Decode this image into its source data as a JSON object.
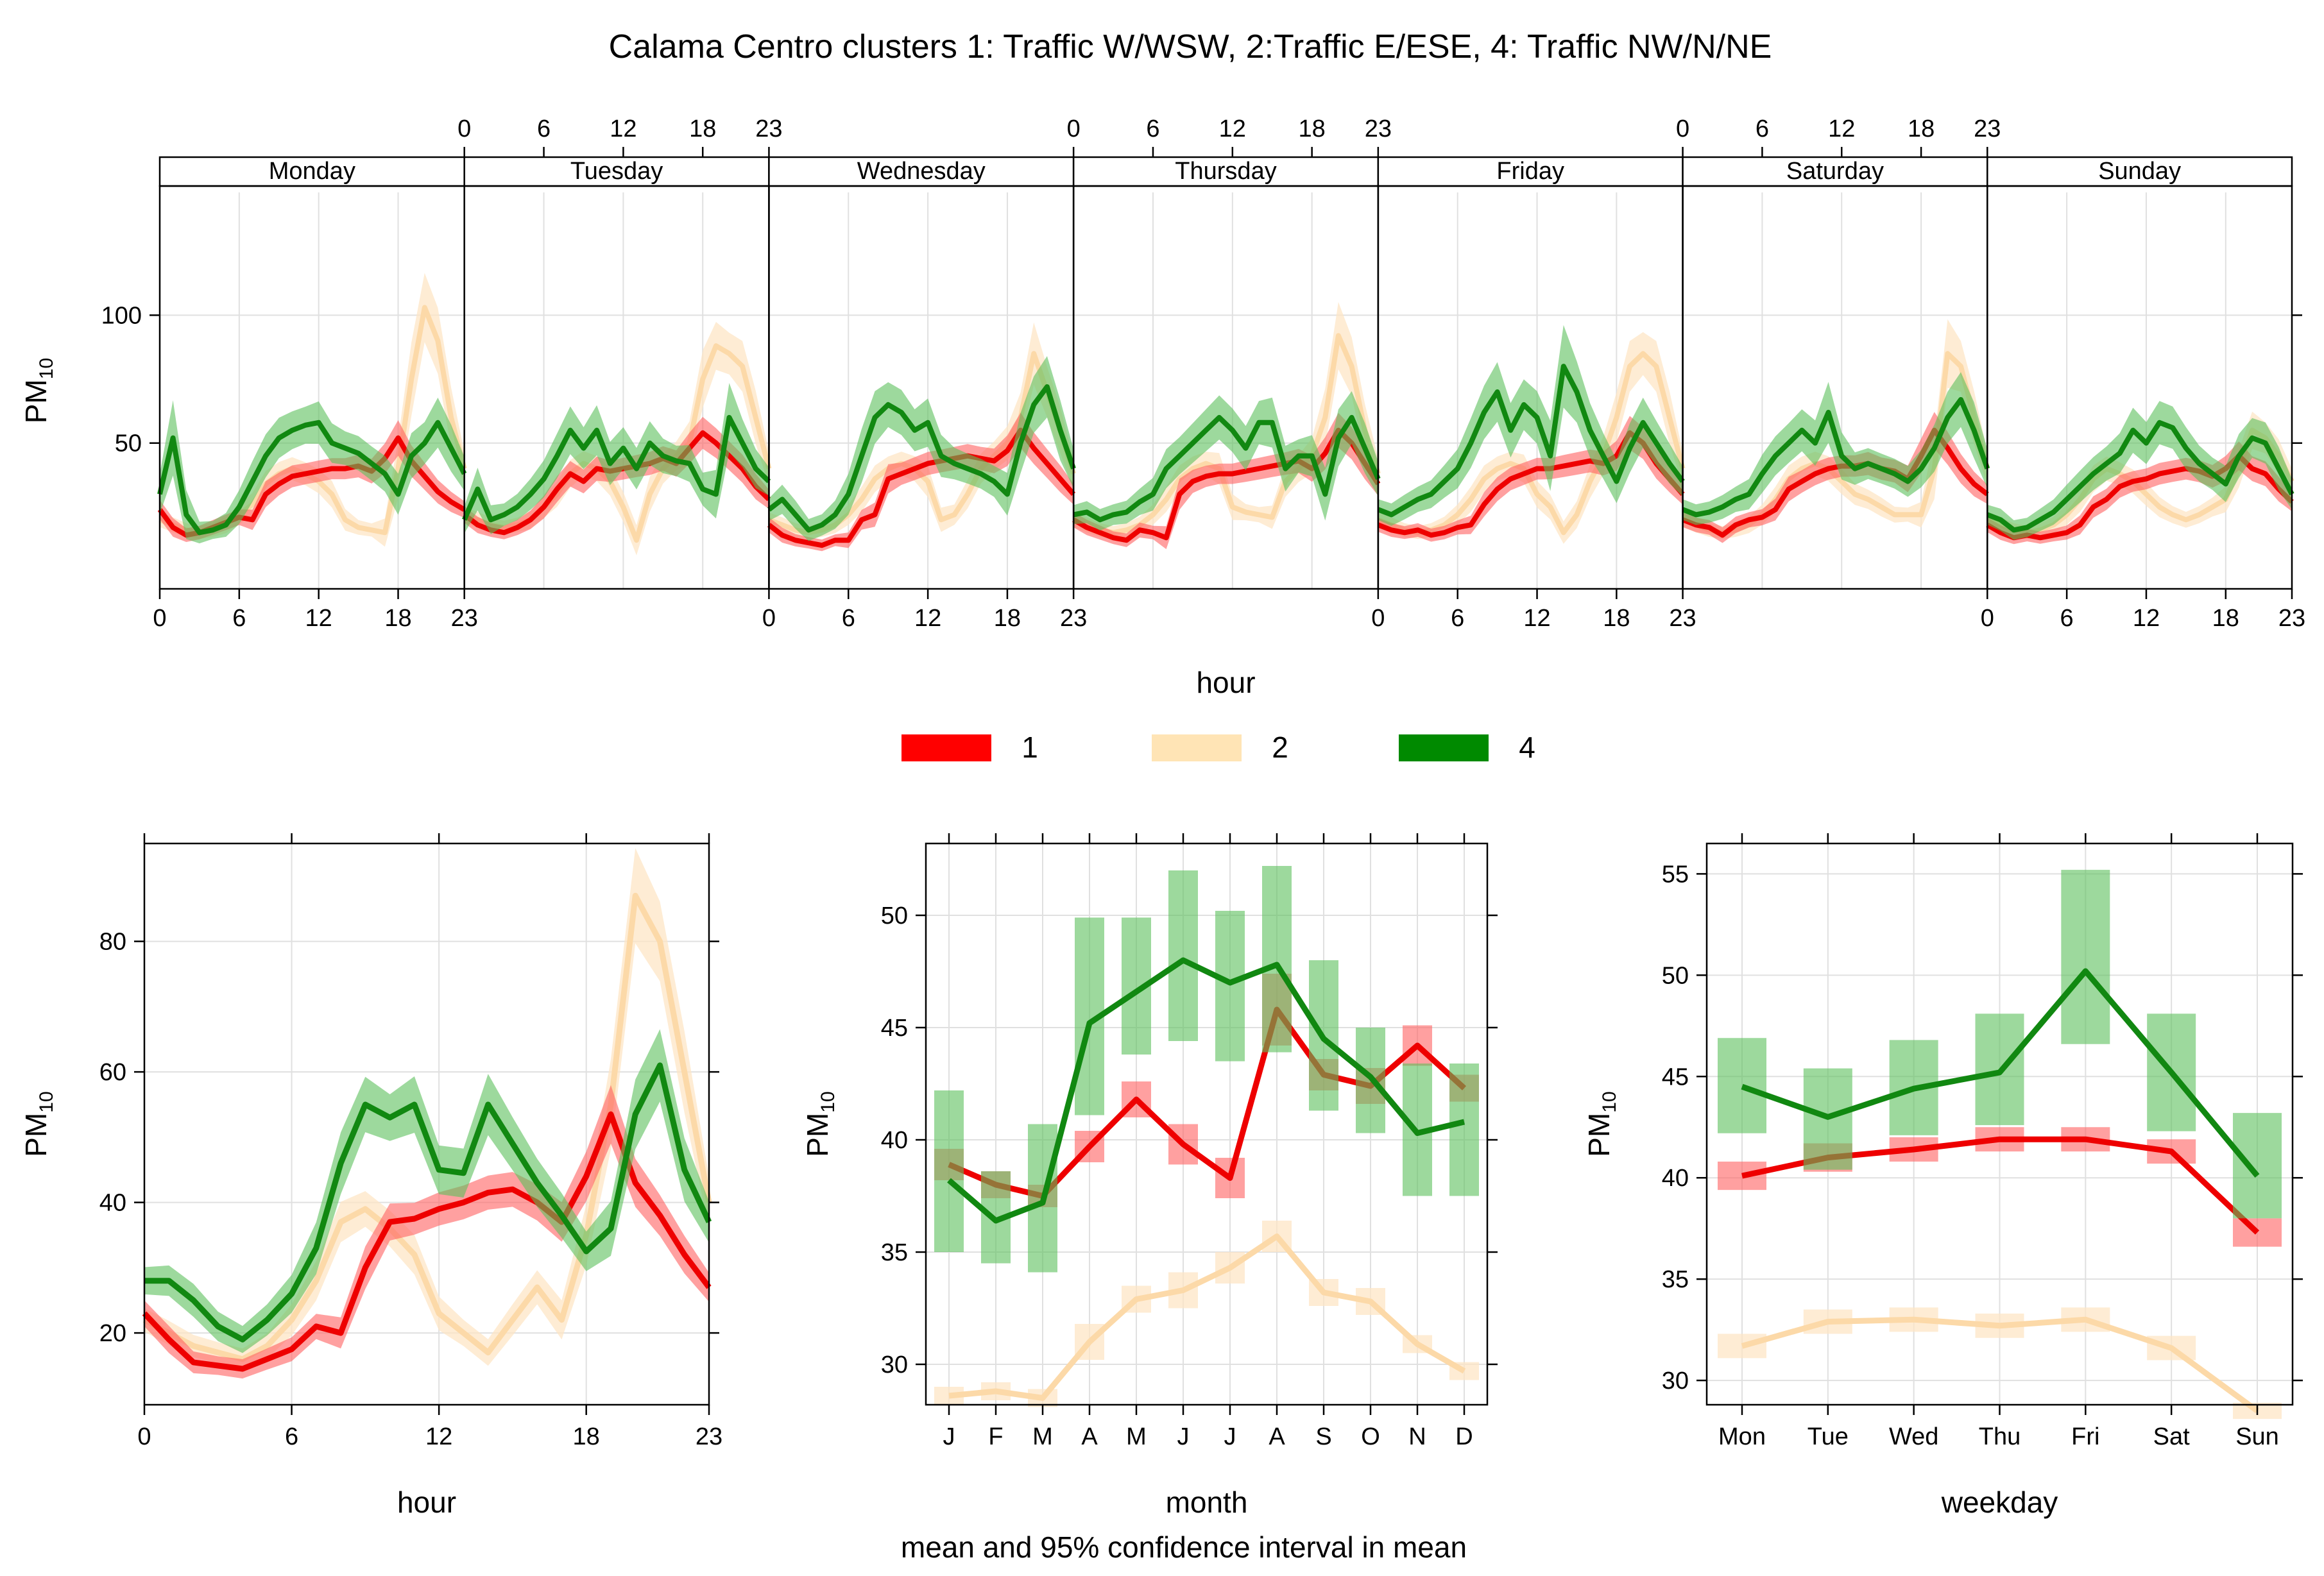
{
  "title": "Calama Centro clusters 1: Traffic W/WSW, 2:Traffic E/ESE, 4: Traffic NW/N/NE",
  "footer_note": "mean and 95% confidence interval in mean",
  "legend": [
    {
      "label": "1",
      "color": "#ff0000"
    },
    {
      "label": "2",
      "color": "#ffe4b5"
    },
    {
      "label": "4",
      "color": "#008a00"
    }
  ],
  "colors": {
    "c1_line": "#ee0000",
    "c1_band": "#ff6060",
    "c2_line": "#fcd9a8",
    "c2_band": "#fde6c6",
    "c4_line": "#118811",
    "c4_band": "#5cbf5c",
    "grid": "#e0e0e0"
  },
  "chart_data": [
    {
      "type": "line",
      "name": "hour of week",
      "ylabel_main": "PM",
      "ylabel_sub": "10",
      "xlabel": "hour",
      "days": [
        "Monday",
        "Tuesday",
        "Wednesday",
        "Thursday",
        "Friday",
        "Saturday",
        "Sunday"
      ],
      "hour_ticks": [
        0,
        6,
        12,
        18,
        23
      ],
      "ylim": [
        -7,
        148
      ],
      "yticks": [
        50,
        100
      ],
      "series": [
        {
          "name": "1",
          "values": [
            24,
            17,
            14,
            15,
            17,
            19,
            21,
            20,
            30,
            34,
            37,
            38,
            39,
            40,
            40,
            41,
            39,
            44,
            52,
            43,
            37,
            31,
            27,
            24,
            22,
            18,
            16,
            15,
            17,
            20,
            25,
            32,
            38,
            35,
            40,
            39,
            40,
            41,
            42,
            44,
            42,
            48,
            54,
            50,
            45,
            40,
            33,
            28,
            18,
            14,
            12,
            11,
            10,
            12,
            12,
            20,
            22,
            36,
            38,
            40,
            42,
            43,
            44,
            45,
            44,
            43,
            47,
            55,
            48,
            42,
            36,
            30,
            20,
            17,
            15,
            13,
            12,
            16,
            15,
            13,
            30,
            35,
            37,
            38,
            38,
            39,
            40,
            41,
            42,
            43,
            40,
            46,
            55,
            50,
            42,
            34,
            18,
            16,
            15,
            16,
            14,
            15,
            17,
            18,
            26,
            32,
            36,
            38,
            40,
            40,
            41,
            42,
            43,
            42,
            45,
            54,
            50,
            42,
            36,
            30,
            20,
            18,
            17,
            14,
            18,
            20,
            21,
            24,
            32,
            35,
            38,
            40,
            41,
            41,
            42,
            40,
            39,
            36,
            45,
            55,
            48,
            40,
            34,
            30,
            18,
            15,
            13,
            14,
            13,
            14,
            15,
            18,
            25,
            28,
            33,
            35,
            36,
            38,
            39,
            40,
            39,
            37,
            40,
            45,
            40,
            38,
            32,
            27
          ]
        },
        {
          "name": "2",
          "values": [
            20,
            18,
            16,
            15,
            16,
            18,
            22,
            26,
            34,
            38,
            40,
            38,
            35,
            30,
            20,
            17,
            16,
            15,
            40,
            75,
            103,
            90,
            60,
            40,
            22,
            20,
            18,
            17,
            18,
            20,
            25,
            30,
            38,
            42,
            40,
            35,
            25,
            12,
            30,
            40,
            45,
            50,
            75,
            88,
            85,
            80,
            60,
            40,
            20,
            18,
            16,
            15,
            16,
            18,
            22,
            28,
            36,
            40,
            42,
            40,
            35,
            20,
            22,
            30,
            40,
            45,
            50,
            60,
            85,
            70,
            55,
            38,
            20,
            18,
            16,
            15,
            16,
            18,
            22,
            28,
            36,
            40,
            42,
            40,
            25,
            23,
            22,
            21,
            35,
            40,
            45,
            60,
            92,
            80,
            55,
            38,
            20,
            18,
            16,
            15,
            16,
            18,
            22,
            28,
            36,
            40,
            42,
            40,
            30,
            25,
            15,
            22,
            35,
            45,
            60,
            80,
            85,
            80,
            60,
            40,
            20,
            18,
            16,
            15,
            16,
            18,
            22,
            28,
            36,
            40,
            42,
            40,
            35,
            30,
            28,
            25,
            22,
            22,
            22,
            40,
            85,
            80,
            60,
            40,
            20,
            18,
            16,
            15,
            16,
            18,
            22,
            28,
            36,
            40,
            38,
            35,
            30,
            25,
            22,
            20,
            22,
            25,
            28,
            40,
            55,
            52,
            45,
            35
          ]
        },
        {
          "name": "4",
          "values": [
            30,
            52,
            22,
            15,
            16,
            18,
            25,
            35,
            45,
            52,
            55,
            57,
            58,
            50,
            48,
            46,
            42,
            38,
            30,
            45,
            50,
            58,
            48,
            38,
            20,
            32,
            20,
            22,
            25,
            30,
            36,
            45,
            55,
            48,
            55,
            42,
            48,
            40,
            50,
            45,
            43,
            42,
            32,
            30,
            60,
            50,
            40,
            35,
            24,
            28,
            22,
            16,
            18,
            22,
            30,
            45,
            60,
            65,
            62,
            55,
            58,
            45,
            42,
            40,
            38,
            35,
            30,
            50,
            65,
            72,
            55,
            40,
            22,
            23,
            20,
            22,
            23,
            27,
            30,
            40,
            45,
            50,
            55,
            60,
            55,
            48,
            58,
            58,
            40,
            45,
            45,
            30,
            52,
            60,
            48,
            36,
            24,
            22,
            25,
            28,
            30,
            35,
            40,
            50,
            62,
            70,
            55,
            65,
            60,
            45,
            80,
            70,
            55,
            45,
            35,
            48,
            58,
            50,
            42,
            35,
            24,
            22,
            23,
            25,
            28,
            30,
            38,
            45,
            50,
            55,
            50,
            62,
            45,
            40,
            42,
            40,
            38,
            35,
            40,
            48,
            60,
            67,
            55,
            40,
            22,
            20,
            16,
            17,
            20,
            23,
            28,
            33,
            38,
            42,
            46,
            55,
            50,
            58,
            56,
            48,
            42,
            38,
            34,
            45,
            52,
            50,
            40,
            30
          ]
        }
      ]
    },
    {
      "type": "line",
      "name": "hour",
      "xlabel": "hour",
      "ylabel_main": "PM",
      "ylabel_sub": "10",
      "xlim": [
        0,
        23
      ],
      "ylim": [
        9,
        95
      ],
      "xticks": [
        0,
        6,
        12,
        18,
        23
      ],
      "yticks": [
        20,
        40,
        60,
        80
      ],
      "series": [
        {
          "name": "1",
          "values": [
            23,
            19,
            15.5,
            15,
            14.5,
            16,
            17.5,
            21,
            20,
            30,
            37,
            37.5,
            39,
            40,
            41.5,
            42,
            40,
            37,
            44,
            53.5,
            43,
            38,
            32,
            27
          ]
        },
        {
          "name": "2",
          "values": [
            22,
            20,
            18,
            17,
            16,
            18,
            22,
            28,
            37,
            39,
            36,
            32,
            23,
            20,
            17,
            22,
            27,
            22,
            35,
            55,
            87,
            80,
            60,
            40
          ]
        },
        {
          "name": "4",
          "values": [
            28,
            28,
            25,
            21,
            19,
            22,
            26,
            33,
            46,
            55,
            53,
            55,
            45,
            44.5,
            55,
            49,
            43,
            38,
            32.5,
            36,
            53.5,
            61,
            45,
            37
          ]
        }
      ]
    },
    {
      "type": "line",
      "name": "month",
      "xlabel": "month",
      "ylabel_main": "PM",
      "ylabel_sub": "10",
      "categories": [
        "J",
        "F",
        "M",
        "A",
        "M",
        "J",
        "J",
        "A",
        "S",
        "O",
        "N",
        "D"
      ],
      "ylim": [
        28.2,
        53.2
      ],
      "yticks": [
        30,
        35,
        40,
        45,
        50
      ],
      "series": [
        {
          "name": "1",
          "values": [
            38.9,
            38.0,
            37.5,
            39.7,
            41.8,
            39.8,
            38.3,
            45.8,
            42.9,
            42.4,
            44.2,
            42.3
          ],
          "ci": [
            [
              38.2,
              39.6
            ],
            [
              37.4,
              38.6
            ],
            [
              37.0,
              38.0
            ],
            [
              39.0,
              40.4
            ],
            [
              41.0,
              42.6
            ],
            [
              38.9,
              40.7
            ],
            [
              37.4,
              39.2
            ],
            [
              44.2,
              47.4
            ],
            [
              42.2,
              43.6
            ],
            [
              41.6,
              43.2
            ],
            [
              43.3,
              45.1
            ],
            [
              41.7,
              42.9
            ]
          ]
        },
        {
          "name": "2",
          "values": [
            28.6,
            28.8,
            28.5,
            31.0,
            32.9,
            33.3,
            34.3,
            35.7,
            33.2,
            32.8,
            30.9,
            29.7
          ],
          "ci": [
            [
              28.2,
              29.0
            ],
            [
              28.4,
              29.2
            ],
            [
              28.1,
              28.9
            ],
            [
              30.2,
              31.8
            ],
            [
              32.3,
              33.5
            ],
            [
              32.5,
              34.1
            ],
            [
              33.6,
              35.0
            ],
            [
              35.0,
              36.4
            ],
            [
              32.6,
              33.8
            ],
            [
              32.2,
              33.4
            ],
            [
              30.5,
              31.3
            ],
            [
              29.3,
              30.1
            ]
          ]
        },
        {
          "name": "4",
          "values": [
            38.2,
            36.4,
            37.2,
            45.2,
            46.6,
            48.0,
            47.0,
            47.8,
            44.5,
            42.8,
            40.3,
            40.8
          ],
          "ci": [
            [
              35.0,
              42.2
            ],
            [
              34.5,
              38.6
            ],
            [
              34.1,
              40.7
            ],
            [
              41.1,
              49.9
            ],
            [
              43.8,
              49.9
            ],
            [
              44.4,
              52.0
            ],
            [
              43.5,
              50.2
            ],
            [
              43.9,
              52.2
            ],
            [
              41.3,
              48.0
            ],
            [
              40.3,
              45.0
            ],
            [
              37.5,
              43.4
            ],
            [
              37.5,
              43.4
            ]
          ]
        }
      ]
    },
    {
      "type": "line",
      "name": "weekday",
      "xlabel": "weekday",
      "ylabel_main": "PM",
      "ylabel_sub": "10",
      "categories": [
        "Mon",
        "Tue",
        "Wed",
        "Thu",
        "Fri",
        "Sat",
        "Sun"
      ],
      "ylim": [
        28.8,
        56.5
      ],
      "yticks": [
        30,
        35,
        40,
        45,
        50,
        55
      ],
      "series": [
        {
          "name": "1",
          "values": [
            40.1,
            41.0,
            41.4,
            41.9,
            41.9,
            41.3,
            37.3
          ],
          "ci": [
            [
              39.4,
              40.8
            ],
            [
              40.3,
              41.7
            ],
            [
              40.8,
              42.0
            ],
            [
              41.3,
              42.5
            ],
            [
              41.3,
              42.5
            ],
            [
              40.7,
              41.9
            ],
            [
              36.6,
              38.0
            ]
          ]
        },
        {
          "name": "2",
          "values": [
            31.7,
            32.9,
            33.0,
            32.7,
            33.0,
            31.6,
            28.5
          ],
          "ci": [
            [
              31.1,
              32.3
            ],
            [
              32.3,
              33.5
            ],
            [
              32.4,
              33.6
            ],
            [
              32.1,
              33.3
            ],
            [
              32.4,
              33.6
            ],
            [
              31.0,
              32.2
            ],
            [
              28.1,
              28.9
            ]
          ]
        },
        {
          "name": "4",
          "values": [
            44.5,
            43.0,
            44.4,
            45.2,
            50.2,
            45.2,
            40.1
          ],
          "ci": [
            [
              42.2,
              46.9
            ],
            [
              40.4,
              45.4
            ],
            [
              42.1,
              46.8
            ],
            [
              42.6,
              48.1
            ],
            [
              46.6,
              55.2
            ],
            [
              42.3,
              48.1
            ],
            [
              38.0,
              43.2
            ]
          ]
        }
      ]
    }
  ]
}
